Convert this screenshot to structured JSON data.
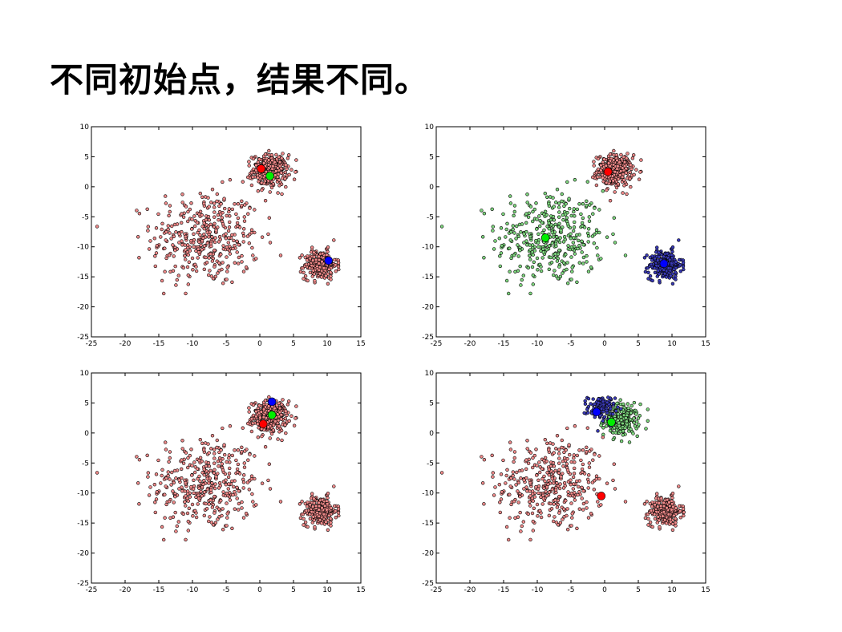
{
  "slide": {
    "title": "不同初始点，结果不同。"
  },
  "colors": {
    "red_fill": "#f08a8a",
    "red_center": "#ff0000",
    "green_fill": "#7ed67e",
    "green_center": "#00ee00",
    "blue_fill": "#3a3ab8",
    "blue_center": "#0000ff",
    "point_edge": "#000000"
  },
  "chart_data": [
    {
      "type": "scatter",
      "title": "",
      "xlabel": "",
      "ylabel": "",
      "xlim": [
        -25,
        15
      ],
      "ylim": [
        -25,
        10
      ],
      "xticks": [
        "-25",
        "-20",
        "-15",
        "-10",
        "-5",
        "0",
        "5",
        "10",
        "15"
      ],
      "yticks": [
        "10",
        "5",
        "0",
        "-5",
        "-10",
        "-15",
        "-20",
        "-25"
      ],
      "grid": false,
      "clusters": [
        {
          "cx": -8,
          "cy": -8.5,
          "spread": 4.0,
          "n": 380,
          "color": "red"
        },
        {
          "cx": 1.5,
          "cy": 2.7,
          "spread": 1.3,
          "n": 320,
          "color": "red"
        },
        {
          "cx": 9,
          "cy": -13,
          "spread": 1.2,
          "n": 260,
          "color": "red"
        }
      ],
      "centers": [
        {
          "x": 0.2,
          "y": 3.0,
          "color": "red"
        },
        {
          "x": 1.5,
          "y": 1.8,
          "color": "green"
        },
        {
          "x": 10.2,
          "y": -12.3,
          "color": "blue"
        }
      ]
    },
    {
      "type": "scatter",
      "title": "",
      "xlabel": "",
      "ylabel": "",
      "xlim": [
        -25,
        15
      ],
      "ylim": [
        -25,
        10
      ],
      "xticks": [
        "-25",
        "-20",
        "-15",
        "-10",
        "-5",
        "0",
        "5",
        "10",
        "15"
      ],
      "yticks": [
        "10",
        "5",
        "0",
        "-5",
        "-10",
        "-15",
        "-20",
        "-25"
      ],
      "grid": false,
      "clusters": [
        {
          "cx": -8,
          "cy": -8.5,
          "spread": 4.0,
          "n": 380,
          "color": "green"
        },
        {
          "cx": 1.5,
          "cy": 2.7,
          "spread": 1.3,
          "n": 320,
          "color": "red"
        },
        {
          "cx": 9,
          "cy": -13,
          "spread": 1.2,
          "n": 260,
          "color": "blue"
        }
      ],
      "centers": [
        {
          "x": 0.5,
          "y": 2.5,
          "color": "red"
        },
        {
          "x": -8.8,
          "y": -8.5,
          "color": "green"
        },
        {
          "x": 8.8,
          "y": -12.8,
          "color": "blue"
        }
      ]
    },
    {
      "type": "scatter",
      "title": "",
      "xlabel": "",
      "ylabel": "",
      "xlim": [
        -25,
        15
      ],
      "ylim": [
        -25,
        10
      ],
      "xticks": [
        "-25",
        "-20",
        "-15",
        "-10",
        "-5",
        "0",
        "5",
        "10",
        "15"
      ],
      "yticks": [
        "10",
        "5",
        "0",
        "-5",
        "-10",
        "-15",
        "-20",
        "-25"
      ],
      "grid": false,
      "clusters": [
        {
          "cx": -8,
          "cy": -8.5,
          "spread": 4.0,
          "n": 380,
          "color": "red"
        },
        {
          "cx": 1.5,
          "cy": 2.7,
          "spread": 1.3,
          "n": 320,
          "color": "red"
        },
        {
          "cx": 9,
          "cy": -13,
          "spread": 1.2,
          "n": 260,
          "color": "red"
        }
      ],
      "centers": [
        {
          "x": 0.5,
          "y": 1.5,
          "color": "red"
        },
        {
          "x": 1.8,
          "y": 3.0,
          "color": "green"
        },
        {
          "x": 1.8,
          "y": 5.2,
          "color": "blue"
        }
      ]
    },
    {
      "type": "scatter",
      "title": "",
      "xlabel": "",
      "ylabel": "",
      "xlim": [
        -25,
        15
      ],
      "ylim": [
        -25,
        10
      ],
      "xticks": [
        "-25",
        "-20",
        "-15",
        "-10",
        "-5",
        "0",
        "5",
        "10",
        "15"
      ],
      "yticks": [
        "10",
        "5",
        "0",
        "-5",
        "-10",
        "-15",
        "-20",
        "-25"
      ],
      "grid": false,
      "clusters": [
        {
          "cx": -8,
          "cy": -8.5,
          "spread": 4.0,
          "n": 380,
          "color": "red"
        },
        {
          "cx": 2.5,
          "cy": 2.2,
          "spread": 1.3,
          "n": 220,
          "color": "green"
        },
        {
          "cx": -0.5,
          "cy": 4.2,
          "spread": 1.0,
          "n": 110,
          "color": "blue"
        },
        {
          "cx": 9,
          "cy": -13,
          "spread": 1.2,
          "n": 260,
          "color": "red"
        }
      ],
      "centers": [
        {
          "x": -0.5,
          "y": -10.5,
          "color": "red"
        },
        {
          "x": 1.0,
          "y": 1.8,
          "color": "green"
        },
        {
          "x": -1.2,
          "y": 3.5,
          "color": "blue"
        }
      ]
    }
  ]
}
